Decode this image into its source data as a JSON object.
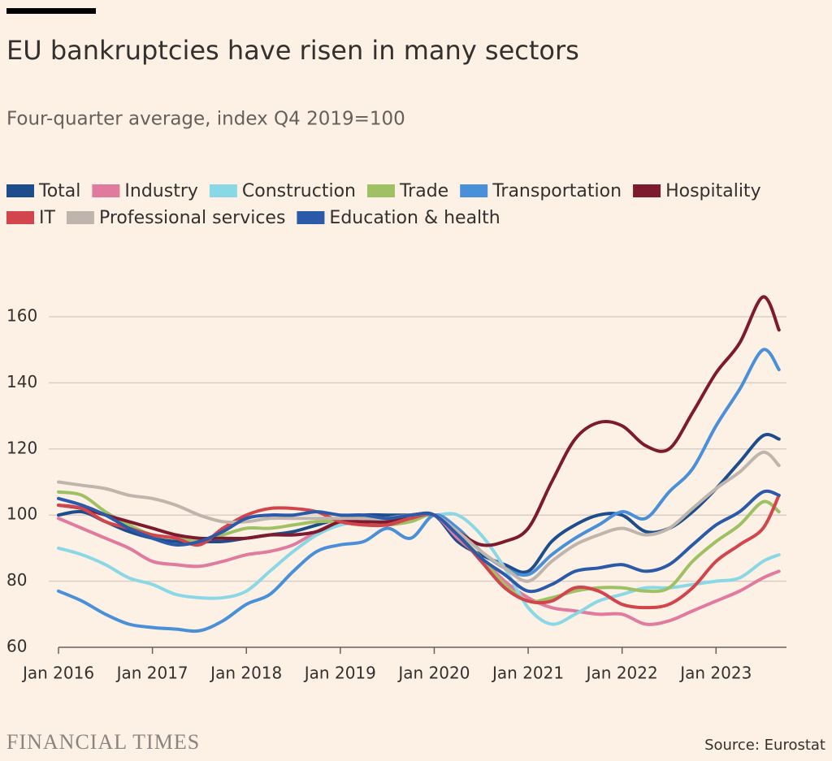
{
  "chart_data": {
    "type": "line",
    "title": "EU bankruptcies have risen in many sectors",
    "subtitle": "Four-quarter average, index Q4 2019=100",
    "source": "Source: Eurostat",
    "brand": "FINANCIAL TIMES",
    "x": [
      2016,
      2016.25,
      2016.5,
      2016.75,
      2017,
      2017.25,
      2017.5,
      2017.75,
      2018,
      2018.25,
      2018.5,
      2018.75,
      2019,
      2019.25,
      2019.5,
      2019.75,
      2020,
      2020.25,
      2020.5,
      2020.75,
      2021,
      2021.25,
      2021.5,
      2021.75,
      2022,
      2022.25,
      2022.5,
      2022.75,
      2023,
      2023.25,
      2023.5,
      2023.67
    ],
    "xlim": [
      2016,
      2023.75
    ],
    "xticks": [
      {
        "value": 2016,
        "label": "Jan 2016"
      },
      {
        "value": 2017,
        "label": "Jan 2017"
      },
      {
        "value": 2018,
        "label": "Jan 2018"
      },
      {
        "value": 2019,
        "label": "Jan 2019"
      },
      {
        "value": 2020,
        "label": "Jan 2020"
      },
      {
        "value": 2021,
        "label": "Jan 2021"
      },
      {
        "value": 2022,
        "label": "Jan 2022"
      },
      {
        "value": 2023,
        "label": "Jan 2023"
      }
    ],
    "ylim": [
      60,
      170
    ],
    "yticks": [
      60,
      80,
      100,
      120,
      140,
      160
    ],
    "grid": true,
    "series": [
      {
        "name": "Total",
        "color": "#1e4d8c",
        "values": [
          100,
          101,
          98,
          95,
          93,
          92,
          92,
          92,
          93,
          94,
          95,
          97,
          99,
          100,
          100,
          100,
          100,
          92,
          88,
          85,
          83,
          92,
          97,
          100,
          100,
          95,
          96,
          101,
          108,
          116,
          124,
          123
        ]
      },
      {
        "name": "Industry",
        "color": "#e07a9e",
        "values": [
          99,
          96,
          93,
          90,
          86,
          85,
          84.5,
          86,
          88,
          89,
          91,
          95,
          98,
          98,
          99,
          99,
          100,
          93,
          87,
          80,
          75,
          72,
          71,
          70,
          70,
          67,
          68,
          71,
          74,
          77,
          81,
          83
        ]
      },
      {
        "name": "Construction",
        "color": "#8ad7e6",
        "values": [
          90,
          88,
          85,
          81,
          79,
          76,
          75,
          75,
          77,
          83,
          89,
          94,
          97,
          98,
          99,
          100,
          100,
          100,
          94,
          84,
          72,
          67,
          70,
          74,
          76,
          78,
          78,
          79,
          80,
          81,
          86,
          88
        ]
      },
      {
        "name": "Trade",
        "color": "#9fc063",
        "values": [
          107,
          106,
          101,
          97,
          94,
          93,
          92,
          94,
          96,
          96,
          97,
          98,
          98,
          97,
          97,
          98,
          100,
          94,
          87,
          79,
          74,
          75,
          77,
          78,
          78,
          77,
          78,
          86,
          92,
          97,
          104,
          101
        ]
      },
      {
        "name": "Transportation",
        "color": "#4a90d9",
        "values": [
          77,
          74,
          70,
          67,
          66,
          65.5,
          65,
          68,
          73,
          76,
          83,
          89,
          91,
          92,
          96,
          93,
          100,
          96,
          89,
          84,
          82,
          88,
          93,
          97,
          101,
          99,
          107,
          114,
          127,
          138,
          150,
          144
        ]
      },
      {
        "name": "Hospitality",
        "color": "#7d1a2e",
        "values": [
          103,
          102,
          100,
          98,
          96,
          94,
          93,
          93,
          93,
          94,
          94,
          95,
          98,
          98,
          98,
          100,
          100,
          95,
          91,
          92,
          96,
          110,
          123,
          128,
          127,
          121,
          120,
          131,
          143,
          152,
          166,
          156
        ]
      },
      {
        "name": "IT",
        "color": "#d2454c",
        "values": [
          103,
          102,
          98,
          96,
          94,
          93,
          91,
          96,
          100,
          102,
          102,
          101,
          98,
          97,
          97,
          99,
          100,
          94,
          86,
          78,
          74,
          74,
          78,
          77,
          73,
          72,
          73,
          78,
          86,
          91,
          96,
          106
        ]
      },
      {
        "name": "Professional services",
        "color": "#c0b5ac",
        "values": [
          110,
          109,
          108,
          106,
          105,
          103,
          100,
          98,
          98,
          99,
          99,
          99,
          99,
          99,
          99,
          100,
          100,
          95,
          89,
          84,
          80,
          86,
          91,
          94,
          96,
          94,
          96,
          102,
          108,
          113,
          119,
          115
        ]
      },
      {
        "name": "Education & health",
        "color": "#2a5aa8",
        "values": [
          105,
          103,
          100,
          96,
          93,
          91,
          92,
          95,
          99,
          100,
          100,
          101,
          100,
          100,
          99,
          100,
          100,
          94,
          87,
          82,
          77,
          79,
          83,
          84,
          85,
          83,
          85,
          91,
          97,
          101,
          107,
          106
        ]
      }
    ]
  }
}
